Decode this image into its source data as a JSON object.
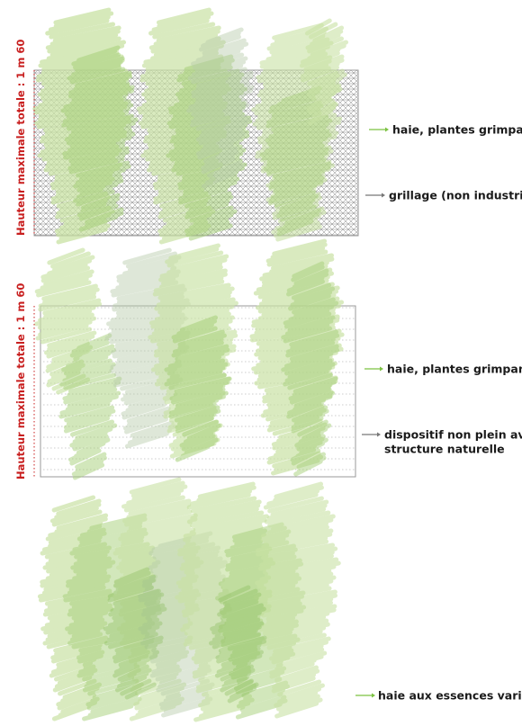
{
  "colors": {
    "hedge_light": "#c9e2a4",
    "hedge_mid": "#a7d07a",
    "hedge_dark": "#86bb57",
    "hedge_grey": "#b8ccab",
    "grid": "#555555",
    "frame": "#999999",
    "height_marker": "#c81e1e",
    "green_arrow": "#7cc242",
    "grey_arrow": "#777777"
  },
  "panels": [
    {
      "height_label": "Hauteur maximale totale : 1 m 60",
      "labels": [
        {
          "text": "haie, plantes grimpantes...",
          "arrow": "green"
        },
        {
          "text": "grillage (non industriel)",
          "arrow": "grey"
        }
      ]
    },
    {
      "height_label": "Hauteur maximale totale : 1 m 60",
      "labels": [
        {
          "text": "haie, plantes grimpantes...",
          "arrow": "green"
        },
        {
          "text": "dispositif non plein avec",
          "text2": "structure naturelle",
          "arrow": "grey"
        }
      ]
    },
    {
      "labels": [
        {
          "text": "haie aux essences variées",
          "arrow": "green"
        }
      ]
    }
  ]
}
